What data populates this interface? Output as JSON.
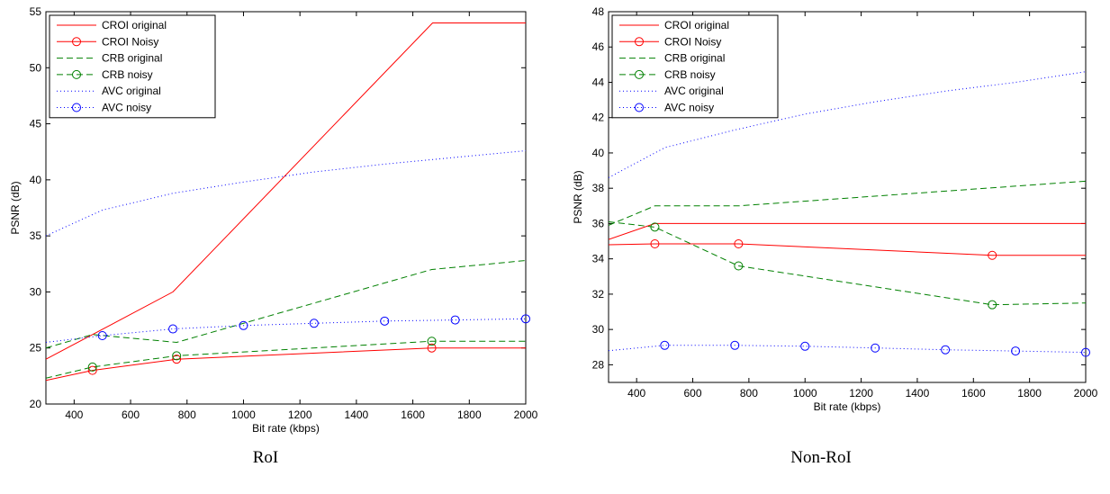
{
  "chart_data": [
    {
      "type": "line",
      "caption": "RoI",
      "xlabel": "Bit rate (kbps)",
      "ylabel": "PSNR (dB)",
      "xlim": [
        300,
        2000
      ],
      "ylim": [
        20,
        55
      ],
      "xticks": [
        400,
        600,
        800,
        1000,
        1200,
        1400,
        1600,
        1800,
        2000
      ],
      "yticks": [
        20,
        25,
        30,
        35,
        40,
        45,
        50,
        55
      ],
      "grid": false,
      "legend_position": "top-left",
      "series": [
        {
          "name": "CROI original",
          "color": "#ff0000",
          "line": "solid",
          "marker": "none",
          "x": [
            300,
            750,
            1670,
            2000
          ],
          "y": [
            24.0,
            30.0,
            54.0,
            54.0
          ]
        },
        {
          "name": "CROI Noisy",
          "color": "#ff0000",
          "line": "solid",
          "marker": "circle",
          "x": [
            300,
            465,
            763,
            1667,
            2000
          ],
          "y": [
            22.1,
            23.0,
            24.0,
            25.0,
            25.0
          ],
          "marker_x": [
            465,
            763,
            1667
          ],
          "marker_y": [
            23.0,
            24.0,
            25.0
          ]
        },
        {
          "name": "CRB original",
          "color": "#008000",
          "line": "dashed",
          "marker": "none",
          "x": [
            300,
            465,
            763,
            1667,
            2000
          ],
          "y": [
            25.0,
            26.2,
            25.5,
            32.0,
            32.8
          ]
        },
        {
          "name": "CRB noisy",
          "color": "#008000",
          "line": "dashed",
          "marker": "circle",
          "x": [
            300,
            465,
            763,
            1667,
            2000
          ],
          "y": [
            22.3,
            23.3,
            24.3,
            25.6,
            25.6
          ],
          "marker_x": [
            465,
            763,
            1667
          ],
          "marker_y": [
            23.3,
            24.3,
            25.6
          ]
        },
        {
          "name": "AVC original",
          "color": "#0000ff",
          "line": "dotted",
          "marker": "none",
          "x": [
            300,
            500,
            750,
            1000,
            1250,
            1500,
            1750,
            2000
          ],
          "y": [
            35.0,
            37.3,
            38.8,
            39.8,
            40.7,
            41.4,
            42.0,
            42.6
          ]
        },
        {
          "name": "AVC noisy",
          "color": "#0000ff",
          "line": "dotted",
          "marker": "circle",
          "x": [
            300,
            500,
            750,
            1000,
            1250,
            1500,
            1750,
            2000
          ],
          "y": [
            25.5,
            26.1,
            26.7,
            27.0,
            27.2,
            27.4,
            27.5,
            27.6
          ],
          "marker_x": [
            500,
            750,
            1000,
            1250,
            1500,
            1750,
            2000
          ],
          "marker_y": [
            26.1,
            26.7,
            27.0,
            27.2,
            27.4,
            27.5,
            27.6
          ]
        }
      ]
    },
    {
      "type": "line",
      "caption": "Non-RoI",
      "xlabel": "Bit rate (kbps)",
      "ylabel": "PSNR (dB)",
      "xlim": [
        300,
        2000
      ],
      "ylim": [
        27,
        48
      ],
      "xticks": [
        400,
        600,
        800,
        1000,
        1200,
        1400,
        1600,
        1800,
        2000
      ],
      "yticks": [
        28,
        30,
        32,
        34,
        36,
        38,
        40,
        42,
        44,
        46,
        48
      ],
      "grid": false,
      "legend_position": "top-left",
      "series": [
        {
          "name": "CROI original",
          "color": "#ff0000",
          "line": "solid",
          "marker": "none",
          "x": [
            300,
            465,
            2000
          ],
          "y": [
            35.1,
            36.0,
            36.0
          ]
        },
        {
          "name": "CROI Noisy",
          "color": "#ff0000",
          "line": "solid",
          "marker": "circle",
          "x": [
            300,
            465,
            763,
            1667,
            2000
          ],
          "y": [
            34.8,
            34.85,
            34.85,
            34.2,
            34.2
          ],
          "marker_x": [
            465,
            763,
            1667
          ],
          "marker_y": [
            34.85,
            34.85,
            34.2
          ]
        },
        {
          "name": "CRB original",
          "color": "#008000",
          "line": "dashed",
          "marker": "none",
          "x": [
            300,
            465,
            763,
            2000
          ],
          "y": [
            35.9,
            37.0,
            37.0,
            38.4
          ]
        },
        {
          "name": "CRB noisy",
          "color": "#008000",
          "line": "dashed",
          "marker": "circle",
          "x": [
            300,
            465,
            763,
            1667,
            2000
          ],
          "y": [
            36.1,
            35.8,
            33.6,
            31.4,
            31.5
          ],
          "marker_x": [
            465,
            763,
            1667
          ],
          "marker_y": [
            35.8,
            33.6,
            31.4
          ]
        },
        {
          "name": "AVC original",
          "color": "#0000ff",
          "line": "dotted",
          "marker": "none",
          "x": [
            300,
            500,
            750,
            1000,
            1250,
            1500,
            1750,
            2000
          ],
          "y": [
            38.6,
            40.3,
            41.3,
            42.2,
            42.9,
            43.5,
            44.0,
            44.6
          ]
        },
        {
          "name": "AVC noisy",
          "color": "#0000ff",
          "line": "dotted",
          "marker": "circle",
          "x": [
            300,
            500,
            750,
            1000,
            1250,
            1500,
            1750,
            2000
          ],
          "y": [
            28.8,
            29.1,
            29.1,
            29.05,
            28.95,
            28.85,
            28.78,
            28.7
          ],
          "marker_x": [
            500,
            750,
            1000,
            1250,
            1500,
            1750,
            2000
          ],
          "marker_y": [
            29.1,
            29.1,
            29.05,
            28.95,
            28.85,
            28.78,
            28.7
          ]
        }
      ]
    }
  ]
}
